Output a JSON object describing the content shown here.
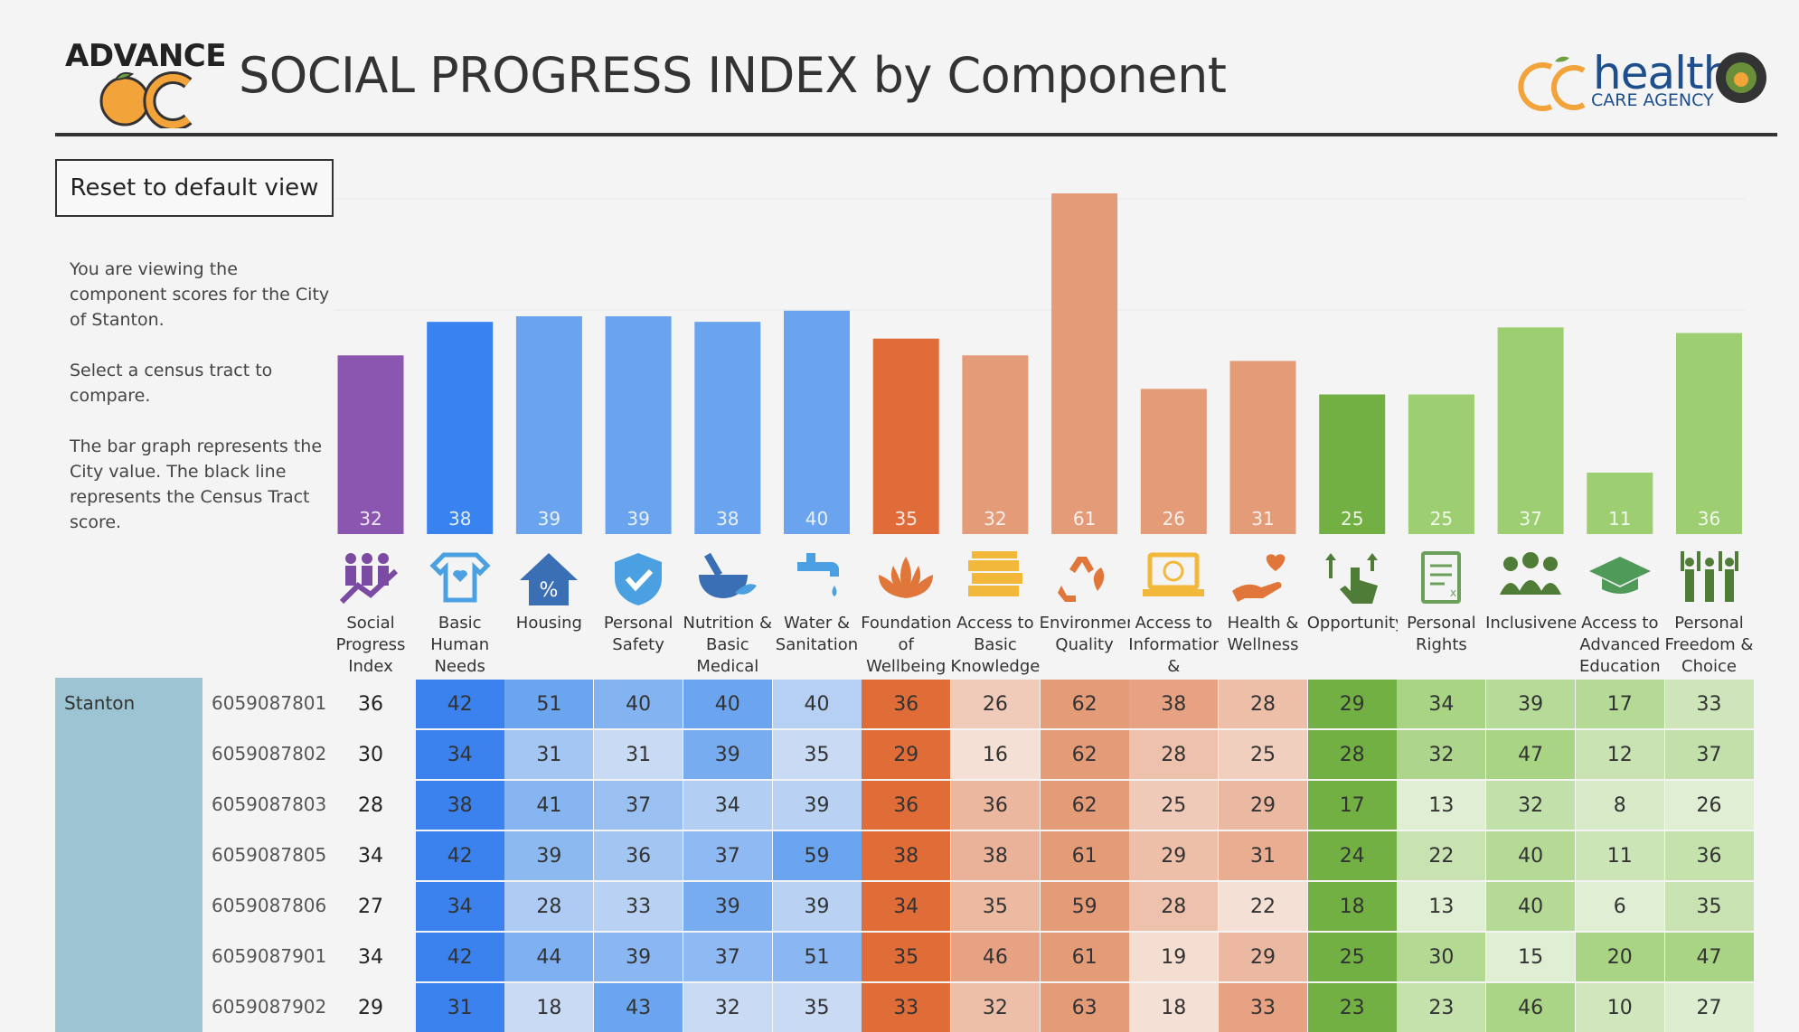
{
  "header": {
    "title": "SOCIAL PROGRESS INDEX by Component",
    "logo_left": {
      "text": "ADVANCE",
      "subtext": "OC"
    },
    "logo_right": {
      "brand": "health",
      "agency": "CARE AGENCY"
    }
  },
  "controls": {
    "reset_label": "Reset to default view"
  },
  "info": {
    "line1": "You are viewing the component scores for the City of Stanton.",
    "line2": "Select a census tract to compare.",
    "line3": "The bar graph represents the City value. The black line represents the Census Tract score."
  },
  "chart_data": {
    "type": "bar",
    "title": "",
    "categories": [
      "Social Progress Index",
      "Basic Human Needs",
      "Housing",
      "Personal Safety",
      "Nutrition & Basic Medical",
      "Water & Sanitation",
      "Foundations of Wellbeing",
      "Access to Basic Knowledge",
      "Environmental Quality",
      "Access to Information &",
      "Health & Wellness",
      "Opportunity",
      "Personal Rights",
      "Inclusiveness",
      "Access to Advanced Education",
      "Personal Freedom & Choice"
    ],
    "values": [
      32,
      38,
      39,
      39,
      38,
      40,
      35,
      32,
      61,
      26,
      31,
      25,
      25,
      37,
      11,
      36
    ],
    "colors": [
      "#8a56b0",
      "#3883f0",
      "#6aa3ee",
      "#6aa3ee",
      "#6aa3ee",
      "#6aa3ee",
      "#e06c3a",
      "#e49b78",
      "#e49b78",
      "#e49b78",
      "#e49b78",
      "#73b043",
      "#9dce72",
      "#9dce72",
      "#9dce72",
      "#9dce72"
    ],
    "ylim": [
      0,
      65
    ],
    "xlabel": "",
    "ylabel": "",
    "grid": true
  },
  "columns": [
    {
      "label": "Social Progress Index",
      "icon": "people-trend-icon",
      "color": "#7b4ba3"
    },
    {
      "label": "Basic Human Needs",
      "icon": "onesie-icon",
      "color": "#4aa0e0"
    },
    {
      "label": "Housing",
      "icon": "house-icon",
      "color": "#3a6fb5"
    },
    {
      "label": "Personal Safety",
      "icon": "shield-icon",
      "color": "#4aa0e0"
    },
    {
      "label": "Nutrition & Basic Medical",
      "icon": "mortar-pestle-icon",
      "color": "#3a6fb5"
    },
    {
      "label": "Water & Sanitation",
      "icon": "faucet-icon",
      "color": "#4aa0e0"
    },
    {
      "label": "Foundations of Wellbeing",
      "icon": "lotus-icon",
      "color": "#e0763a"
    },
    {
      "label": "Access to Basic Knowledge",
      "icon": "books-icon",
      "color": "#f2b83a"
    },
    {
      "label": "Environmental Quality",
      "icon": "recycle-icon",
      "color": "#e0763a"
    },
    {
      "label": "Access to Information &",
      "icon": "laptop-icon",
      "color": "#f2b83a"
    },
    {
      "label": "Health & Wellness",
      "icon": "hand-heart-icon",
      "color": "#e0763a"
    },
    {
      "label": "Opportunity",
      "icon": "hand-arrows-icon",
      "color": "#4f7d38"
    },
    {
      "label": "Personal Rights",
      "icon": "document-icon",
      "color": "#6aa05a"
    },
    {
      "label": "Inclusiveness",
      "icon": "group-icon",
      "color": "#4f7d38"
    },
    {
      "label": "Access to Advanced Education",
      "icon": "graduation-cap-icon",
      "color": "#4f9a58"
    },
    {
      "label": "Personal Freedom & Choice",
      "icon": "raised-hands-icon",
      "color": "#4f7d38"
    }
  ],
  "table": {
    "city": "Stanton",
    "rows": [
      {
        "tract": "6059087801",
        "values": [
          36,
          42,
          51,
          40,
          40,
          40,
          36,
          26,
          62,
          38,
          28,
          29,
          34,
          39,
          17,
          33
        ]
      },
      {
        "tract": "6059087802",
        "values": [
          30,
          34,
          31,
          31,
          39,
          35,
          29,
          16,
          62,
          28,
          25,
          28,
          32,
          47,
          12,
          37
        ]
      },
      {
        "tract": "6059087803",
        "values": [
          28,
          38,
          41,
          37,
          34,
          39,
          36,
          36,
          62,
          25,
          29,
          17,
          13,
          32,
          8,
          26
        ]
      },
      {
        "tract": "6059087805",
        "values": [
          34,
          42,
          39,
          36,
          37,
          59,
          38,
          38,
          61,
          29,
          31,
          24,
          22,
          40,
          11,
          36
        ]
      },
      {
        "tract": "6059087806",
        "values": [
          27,
          34,
          28,
          33,
          39,
          39,
          34,
          35,
          59,
          28,
          22,
          18,
          13,
          40,
          6,
          35
        ]
      },
      {
        "tract": "6059087901",
        "values": [
          34,
          42,
          44,
          39,
          37,
          51,
          35,
          46,
          61,
          19,
          29,
          25,
          30,
          15,
          20,
          47
        ]
      },
      {
        "tract": "6059087902",
        "values": [
          29,
          31,
          18,
          43,
          32,
          35,
          33,
          32,
          63,
          18,
          33,
          23,
          23,
          46,
          10,
          27
        ]
      }
    ],
    "cell_palettes": [
      null,
      {
        "lo": "#3b82ef",
        "hi": "#3b82ef"
      },
      {
        "lo": "#c9dbf4",
        "hi": "#6ba5f0"
      },
      {
        "lo": "#c9dbf4",
        "hi": "#6ba5f0"
      },
      {
        "lo": "#c9dbf4",
        "hi": "#6ba5f0"
      },
      {
        "lo": "#c9dbf4",
        "hi": "#6ba5f0"
      },
      {
        "lo": "#e06c38",
        "hi": "#e06c38"
      },
      {
        "lo": "#f5e0d5",
        "hi": "#e6a283"
      },
      {
        "lo": "#e49b78",
        "hi": "#e49b78"
      },
      {
        "lo": "#f5e0d5",
        "hi": "#e6a283"
      },
      {
        "lo": "#f5e0d5",
        "hi": "#e6a283"
      },
      {
        "lo": "#73b043",
        "hi": "#73b043"
      },
      {
        "lo": "#e0eed3",
        "hi": "#a8d484"
      },
      {
        "lo": "#e0eed3",
        "hi": "#a8d484"
      },
      {
        "lo": "#e0eed3",
        "hi": "#a8d484"
      },
      {
        "lo": "#e0eed3",
        "hi": "#a8d484"
      }
    ]
  }
}
